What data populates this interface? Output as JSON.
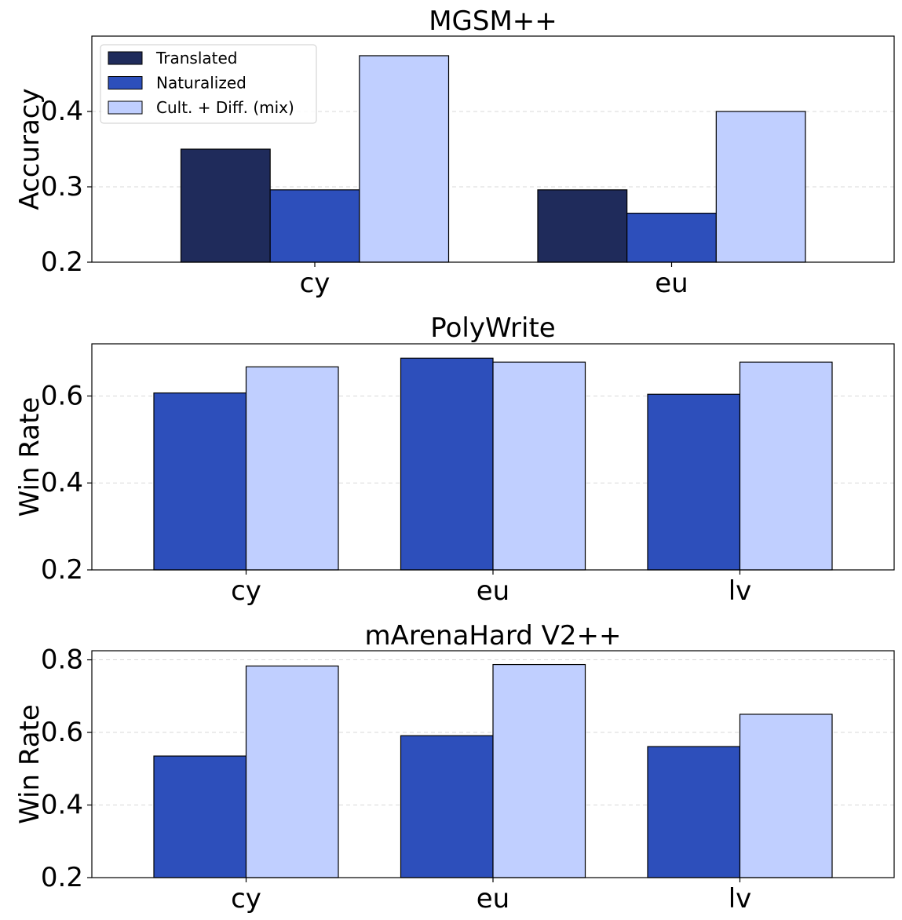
{
  "chart_data": [
    {
      "type": "bar",
      "title": "MGSM++",
      "xlabel": "",
      "ylabel": "Accuracy",
      "ylim": [
        0.2,
        0.5
      ],
      "yticks": [
        "0.2",
        "0.3",
        "0.4"
      ],
      "categories": [
        "cy",
        "eu"
      ],
      "legend_position": "top-left",
      "series": [
        {
          "name": "Translated",
          "color": "#1f2b5b",
          "values": [
            0.35,
            0.296
          ]
        },
        {
          "name": "Naturalized",
          "color": "#2d4fbb",
          "values": [
            0.296,
            0.265
          ]
        },
        {
          "name": "Cult. + Diff. (mix)",
          "color": "#c0cfff",
          "values": [
            0.474,
            0.4
          ]
        }
      ]
    },
    {
      "type": "bar",
      "title": "PolyWrite",
      "xlabel": "",
      "ylabel": "Win Rate",
      "ylim": [
        0.2,
        0.72
      ],
      "yticks": [
        "0.2",
        "0.4",
        "0.6"
      ],
      "categories": [
        "cy",
        "eu",
        "lv"
      ],
      "series": [
        {
          "name": "Naturalized",
          "color": "#2d4fbb",
          "values": [
            0.607,
            0.687,
            0.604
          ]
        },
        {
          "name": "Cult. + Diff. (mix)",
          "color": "#c0cfff",
          "values": [
            0.667,
            0.678,
            0.678
          ]
        }
      ]
    },
    {
      "type": "bar",
      "title": "mArenaHard V2++",
      "xlabel": "",
      "ylabel": "Win Rate",
      "ylim": [
        0.2,
        0.825
      ],
      "yticks": [
        "0.2",
        "0.4",
        "0.6",
        "0.8"
      ],
      "categories": [
        "cy",
        "eu",
        "lv"
      ],
      "series": [
        {
          "name": "Naturalized",
          "color": "#2d4fbb",
          "values": [
            0.535,
            0.591,
            0.561
          ]
        },
        {
          "name": "Cult. + Diff. (mix)",
          "color": "#c0cfff",
          "values": [
            0.783,
            0.787,
            0.65
          ]
        }
      ]
    }
  ]
}
